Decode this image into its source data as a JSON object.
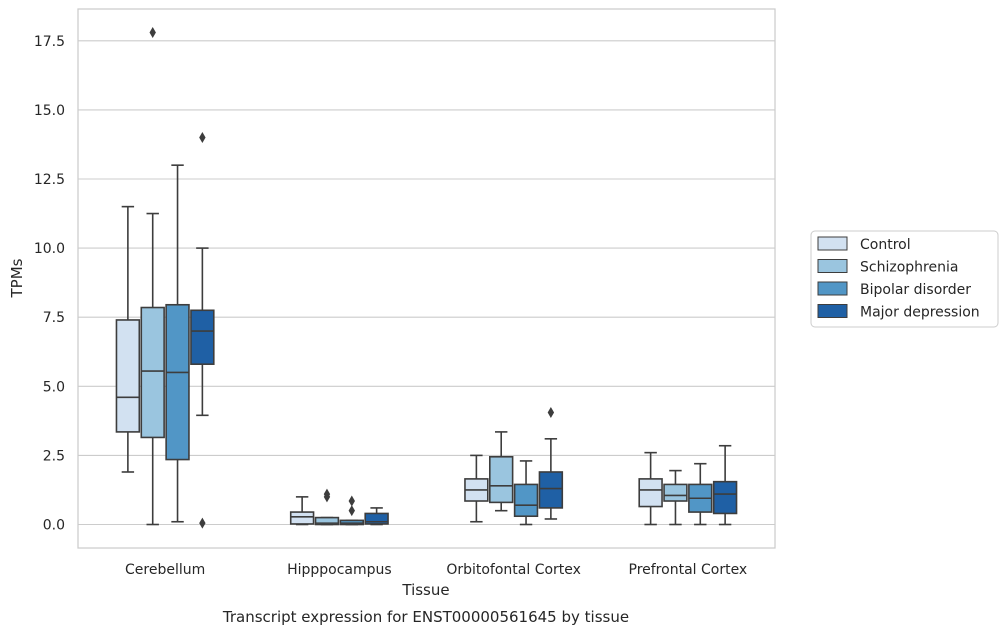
{
  "chart_data": {
    "type": "boxplot",
    "title": "",
    "caption": "Transcript expression for ENST00000561645 by tissue",
    "xlabel": "Tissue",
    "ylabel": "TPMs",
    "ylim": [
      -0.85,
      18.65
    ],
    "yticks": [
      "0.0",
      "2.5",
      "5.0",
      "7.5",
      "10.0",
      "12.5",
      "15.0",
      "17.5"
    ],
    "grid": "horizontal",
    "legend_position": "right",
    "categories": [
      "Cerebellum",
      "Hipppocampus",
      "Orbitofontal Cortex",
      "Prefrontal Cortex"
    ],
    "series": [
      {
        "name": "Control",
        "color": "#d2e1f1",
        "boxes": [
          {
            "whisker_low": 1.9,
            "q1": 3.35,
            "median": 4.6,
            "q3": 7.4,
            "whisker_high": 11.5,
            "outliers": []
          },
          {
            "whisker_low": 0.0,
            "q1": 0.02,
            "median": 0.28,
            "q3": 0.45,
            "whisker_high": 1.0,
            "outliers": []
          },
          {
            "whisker_low": 0.1,
            "q1": 0.85,
            "median": 1.25,
            "q3": 1.65,
            "whisker_high": 2.5,
            "outliers": []
          },
          {
            "whisker_low": 0.0,
            "q1": 0.65,
            "median": 1.25,
            "q3": 1.65,
            "whisker_high": 2.6,
            "outliers": []
          }
        ]
      },
      {
        "name": "Schizophrenia",
        "color": "#9ac5df",
        "boxes": [
          {
            "whisker_low": 0.0,
            "q1": 3.15,
            "median": 5.55,
            "q3": 7.85,
            "whisker_high": 11.25,
            "outliers": [
              17.8
            ]
          },
          {
            "whisker_low": 0.0,
            "q1": 0.0,
            "median": 0.05,
            "q3": 0.25,
            "whisker_high": 0.25,
            "outliers": [
              1.0,
              1.1
            ]
          },
          {
            "whisker_low": 0.5,
            "q1": 0.8,
            "median": 1.4,
            "q3": 2.45,
            "whisker_high": 3.35,
            "outliers": []
          },
          {
            "whisker_low": 0.0,
            "q1": 0.85,
            "median": 1.05,
            "q3": 1.45,
            "whisker_high": 1.95,
            "outliers": []
          }
        ]
      },
      {
        "name": "Bipolar disorder",
        "color": "#5196c6",
        "boxes": [
          {
            "whisker_low": 0.1,
            "q1": 2.35,
            "median": 5.5,
            "q3": 7.95,
            "whisker_high": 13.0,
            "outliers": []
          },
          {
            "whisker_low": 0.0,
            "q1": 0.0,
            "median": 0.05,
            "q3": 0.15,
            "whisker_high": 0.15,
            "outliers": [
              0.5,
              0.85
            ]
          },
          {
            "whisker_low": 0.0,
            "q1": 0.3,
            "median": 0.7,
            "q3": 1.45,
            "whisker_high": 2.3,
            "outliers": []
          },
          {
            "whisker_low": 0.0,
            "q1": 0.45,
            "median": 0.95,
            "q3": 1.45,
            "whisker_high": 2.2,
            "outliers": []
          }
        ]
      },
      {
        "name": "Major depression",
        "color": "#1f60a5",
        "boxes": [
          {
            "whisker_low": 3.95,
            "q1": 5.8,
            "median": 7.0,
            "q3": 7.75,
            "whisker_high": 10.0,
            "outliers": [
              14.0,
              0.05
            ]
          },
          {
            "whisker_low": 0.0,
            "q1": 0.02,
            "median": 0.1,
            "q3": 0.4,
            "whisker_high": 0.6,
            "outliers": []
          },
          {
            "whisker_low": 0.2,
            "q1": 0.6,
            "median": 1.3,
            "q3": 1.9,
            "whisker_high": 3.1,
            "outliers": [
              4.05
            ]
          },
          {
            "whisker_low": 0.0,
            "q1": 0.4,
            "median": 1.1,
            "q3": 1.55,
            "whisker_high": 2.85,
            "outliers": []
          }
        ]
      }
    ]
  }
}
